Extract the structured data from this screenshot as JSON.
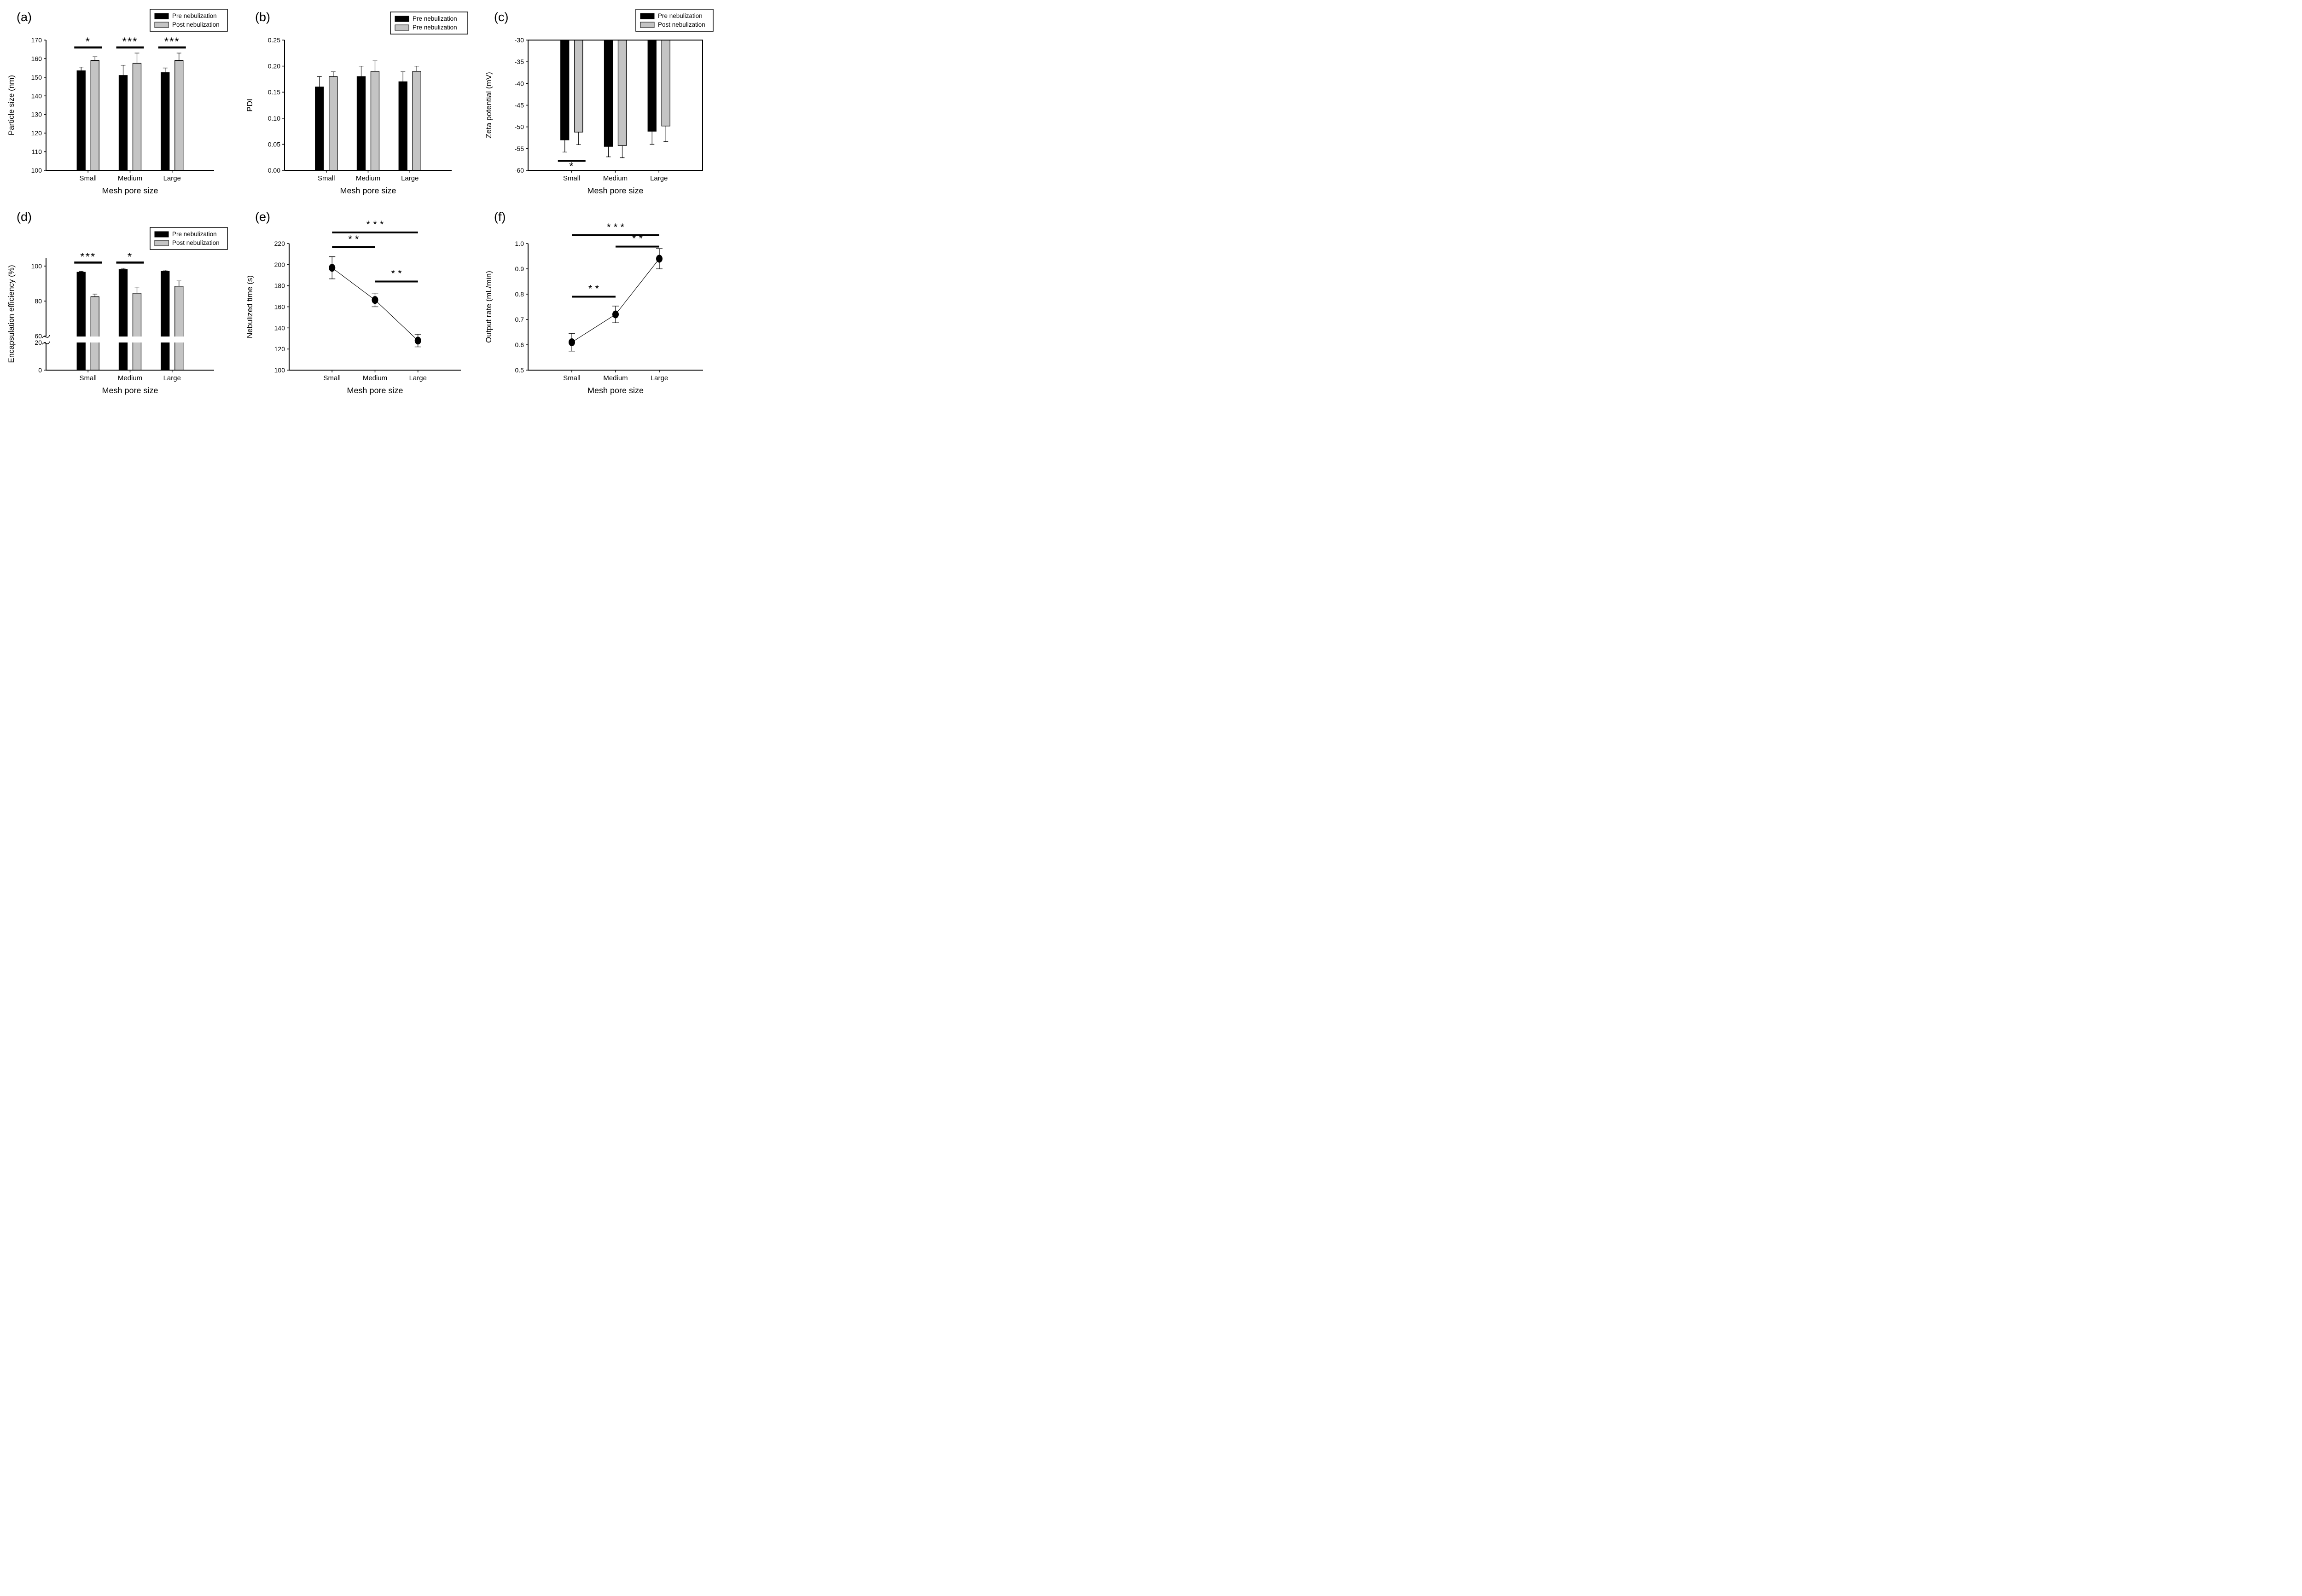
{
  "figure": {
    "background": "#ffffff",
    "bar_black": "#000000",
    "bar_gray": "#c4c4c4"
  },
  "chart_data": [
    {
      "id": "a",
      "panel_label": "(a)",
      "type": "bar",
      "xlabel": "Mesh pore size",
      "ylabel": "Particle size (nm)",
      "categories": [
        "Small",
        "Medium",
        "Large"
      ],
      "ylim": [
        100,
        170
      ],
      "ytick_values": [
        100,
        110,
        120,
        130,
        140,
        150,
        160,
        170
      ],
      "ytick_labels": [
        "100",
        "110",
        "120",
        "130",
        "140",
        "150",
        "160",
        "170"
      ],
      "grid": false,
      "series": [
        {
          "name": "Pre nebulization",
          "color": "#000000",
          "values": [
            153.5,
            151,
            152.5
          ],
          "errors_up": [
            2,
            5.5,
            2.5
          ]
        },
        {
          "name": "Post nebulization",
          "color": "#c4c4c4",
          "values": [
            159,
            157.5,
            159
          ],
          "errors_up": [
            2,
            5.5,
            4
          ]
        }
      ],
      "legend": {
        "labels": [
          "Pre nebulization",
          "Post nebulization"
        ],
        "position": "top-right"
      },
      "significance": [
        {
          "kind": "pair",
          "category": 0,
          "label": "*",
          "y": 166
        },
        {
          "kind": "pair",
          "category": 1,
          "label": "***",
          "y": 166
        },
        {
          "kind": "pair",
          "category": 2,
          "label": "***",
          "y": 166
        }
      ]
    },
    {
      "id": "b",
      "panel_label": "(b)",
      "type": "bar",
      "xlabel": "Mesh pore size",
      "ylabel": "PDI",
      "categories": [
        "Small",
        "Medium",
        "Large"
      ],
      "ylim": [
        0,
        0.25
      ],
      "ytick_values": [
        0,
        0.05,
        0.1,
        0.15,
        0.2,
        0.25
      ],
      "ytick_labels": [
        "0.00",
        "0.05",
        "0.10",
        "0.15",
        "0.20",
        "0.25"
      ],
      "grid": false,
      "series": [
        {
          "name": "Pre nebulization",
          "color": "#000000",
          "values": [
            0.16,
            0.18,
            0.17
          ],
          "errors_up": [
            0.02,
            0.02,
            0.019
          ]
        },
        {
          "name": "Pre nebulization",
          "color": "#c4c4c4",
          "values": [
            0.18,
            0.19,
            0.19
          ],
          "errors_up": [
            0.009,
            0.02,
            0.01
          ]
        }
      ],
      "legend": {
        "labels": [
          "Pre nebulization",
          "Pre nebulization"
        ],
        "position": "top-right"
      },
      "significance": []
    },
    {
      "id": "c",
      "panel_label": "(c)",
      "type": "bar",
      "baseline": "top",
      "xlabel": "Mesh pore size",
      "ylabel": "Zeta potential (mV)",
      "categories": [
        "Small",
        "Medium",
        "Large"
      ],
      "ylim": [
        -60,
        -30
      ],
      "ytick_values": [
        -30,
        -35,
        -40,
        -45,
        -50,
        -55,
        -60
      ],
      "ytick_labels": [
        "-30",
        "-35",
        "-40",
        "-45",
        "-50",
        "-55",
        "-60"
      ],
      "grid": false,
      "series": [
        {
          "name": "Pre nebulization",
          "color": "#000000",
          "values": [
            -53,
            -54.5,
            -51
          ],
          "errors_down": [
            2.8,
            2.4,
            3
          ]
        },
        {
          "name": "Post nebulization",
          "color": "#c4c4c4",
          "values": [
            -51.2,
            -54.3,
            -49.8
          ],
          "errors_down": [
            2.9,
            2.8,
            3.6
          ]
        }
      ],
      "legend": {
        "labels": [
          "Pre nebulization",
          "Post nebulization"
        ],
        "position": "top-right"
      },
      "significance": [
        {
          "kind": "pair",
          "category": 0,
          "label": "*",
          "y": -57.8,
          "star_below": true
        }
      ]
    },
    {
      "id": "d",
      "panel_label": "(d)",
      "type": "bar",
      "xlabel": "Mesh pore size",
      "ylabel": "Encapsulation efficiency (%)",
      "categories": [
        "Small",
        "Medium",
        "Large"
      ],
      "ylim": [
        0,
        110
      ],
      "axis_break": {
        "lower_max": 20,
        "upper_min": 60,
        "upper_max": 110
      },
      "ytick_values": [
        0,
        20,
        60,
        80,
        100
      ],
      "ytick_labels": [
        "0",
        "20",
        "60",
        "80",
        "100"
      ],
      "grid": false,
      "series": [
        {
          "name": "Pre nebulization",
          "color": "#000000",
          "values": [
            96.5,
            98,
            97
          ],
          "errors_up": [
            0.5,
            0.8,
            0.7
          ]
        },
        {
          "name": "Post nebulization",
          "color": "#c4c4c4",
          "values": [
            82.5,
            84.5,
            88.5
          ],
          "errors_up": [
            1.5,
            3.5,
            3
          ]
        }
      ],
      "legend": {
        "labels": [
          "Pre nebulization",
          "Post nebulization"
        ],
        "position": "top-right"
      },
      "significance": [
        {
          "kind": "pair",
          "category": 0,
          "label": "***",
          "y": 102
        },
        {
          "kind": "pair",
          "category": 1,
          "label": "*",
          "y": 102
        }
      ]
    },
    {
      "id": "e",
      "panel_label": "(e)",
      "type": "line",
      "xlabel": "Mesh pore size",
      "ylabel": "Nebulized time (s)",
      "categories": [
        "Small",
        "Medium",
        "Large"
      ],
      "ylim": [
        100,
        220
      ],
      "ytick_values": [
        100,
        120,
        140,
        160,
        180,
        200,
        220
      ],
      "ytick_labels": [
        "100",
        "120",
        "140",
        "160",
        "180",
        "200",
        "220"
      ],
      "grid": false,
      "series": [
        {
          "color": "#000000",
          "values": [
            197,
            166.5,
            128
          ],
          "errors": [
            10.5,
            6.5,
            6
          ]
        }
      ],
      "significance": [
        {
          "kind": "span",
          "from": 0,
          "to": 2,
          "label": "* * *",
          "y": 230.5
        },
        {
          "kind": "span",
          "from": 0,
          "to": 1,
          "label": "* *",
          "y": 216.5
        },
        {
          "kind": "span",
          "from": 1,
          "to": 2,
          "label": "* *",
          "y": 184
        }
      ]
    },
    {
      "id": "f",
      "panel_label": "(f)",
      "type": "line",
      "xlabel": "Mesh pore size",
      "ylabel": "Output rate (mL/min)",
      "categories": [
        "Small",
        "Medium",
        "Large"
      ],
      "ylim": [
        0.5,
        1.0
      ],
      "ytick_values": [
        0.5,
        0.6,
        0.7,
        0.8,
        0.9,
        1.0
      ],
      "ytick_labels": [
        "0.5",
        "0.6",
        "0.7",
        "0.8",
        "0.9",
        "1.0"
      ],
      "grid": false,
      "series": [
        {
          "color": "#000000",
          "values": [
            0.61,
            0.72,
            0.94
          ],
          "errors": [
            0.035,
            0.033,
            0.04
          ]
        }
      ],
      "significance": [
        {
          "kind": "span",
          "from": 0,
          "to": 2,
          "label": "* * *",
          "y": 1.033
        },
        {
          "kind": "span",
          "from": 1,
          "to": 2,
          "label": "* *",
          "y": 0.988
        },
        {
          "kind": "span",
          "from": 0,
          "to": 1,
          "label": "* *",
          "y": 0.79
        }
      ]
    }
  ]
}
